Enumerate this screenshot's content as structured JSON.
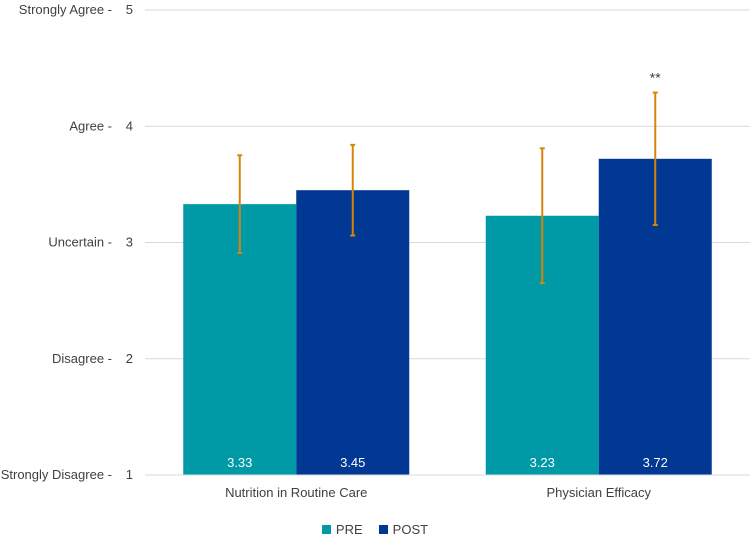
{
  "chart_data": {
    "type": "bar",
    "categories": [
      "Nutrition in Routine Care",
      "Physician Efficacy"
    ],
    "series": [
      {
        "name": "PRE",
        "color": "#009aa6",
        "values": [
          3.33,
          3.23
        ],
        "error_low": [
          2.91,
          2.65
        ],
        "error_high": [
          3.75,
          3.81
        ],
        "labels": [
          "3.33",
          "3.23"
        ]
      },
      {
        "name": "POST",
        "color": "#003893",
        "values": [
          3.45,
          3.72
        ],
        "error_low": [
          3.06,
          3.15
        ],
        "error_high": [
          3.84,
          4.29
        ],
        "labels": [
          "3.45",
          "3.72"
        ]
      }
    ],
    "ylim": [
      1,
      5
    ],
    "yticks": [
      {
        "value": 1,
        "tick": "1",
        "label": "Strongly Disagree -"
      },
      {
        "value": 2,
        "tick": "2",
        "label": "Disagree -"
      },
      {
        "value": 3,
        "tick": "3",
        "label": "Uncertain -"
      },
      {
        "value": 4,
        "tick": "4",
        "label": "Agree -"
      },
      {
        "value": 5,
        "tick": "5",
        "label": "Strongly Agree -"
      }
    ],
    "annotations": [
      {
        "category": 1,
        "series": 1,
        "text": "**"
      }
    ],
    "error_color": "#d4860b",
    "grid": true,
    "legend": "bottom-center"
  }
}
